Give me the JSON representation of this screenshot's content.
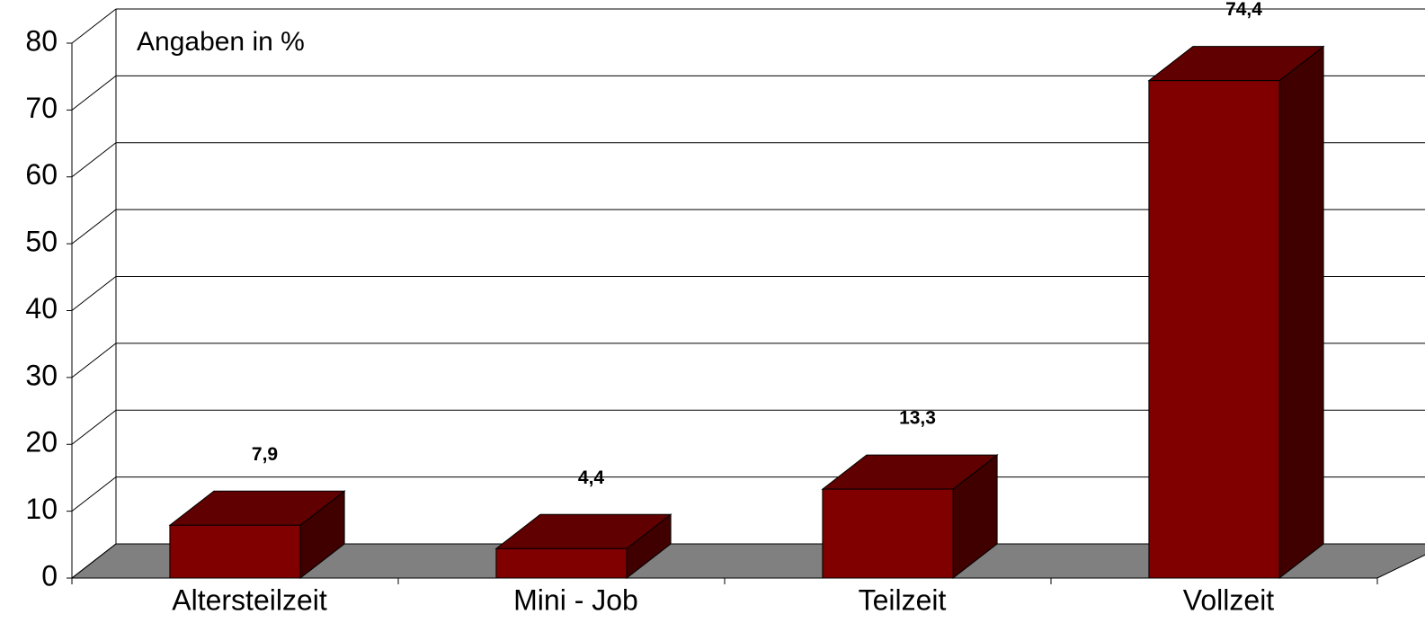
{
  "chart_data": {
    "type": "bar3d",
    "annotation": "Angaben in %",
    "categories": [
      "Altersteilzeit",
      "Mini - Job",
      "Teilzeit",
      "Vollzeit"
    ],
    "values": [
      7.9,
      4.4,
      13.3,
      74.4
    ],
    "value_labels": [
      "7,9",
      "4,4",
      "13,3",
      "74,4"
    ],
    "color": "#800000",
    "ylim": [
      0,
      80
    ],
    "yticks": [
      0,
      10,
      20,
      30,
      40,
      50,
      60,
      70,
      80
    ],
    "grid": true
  }
}
